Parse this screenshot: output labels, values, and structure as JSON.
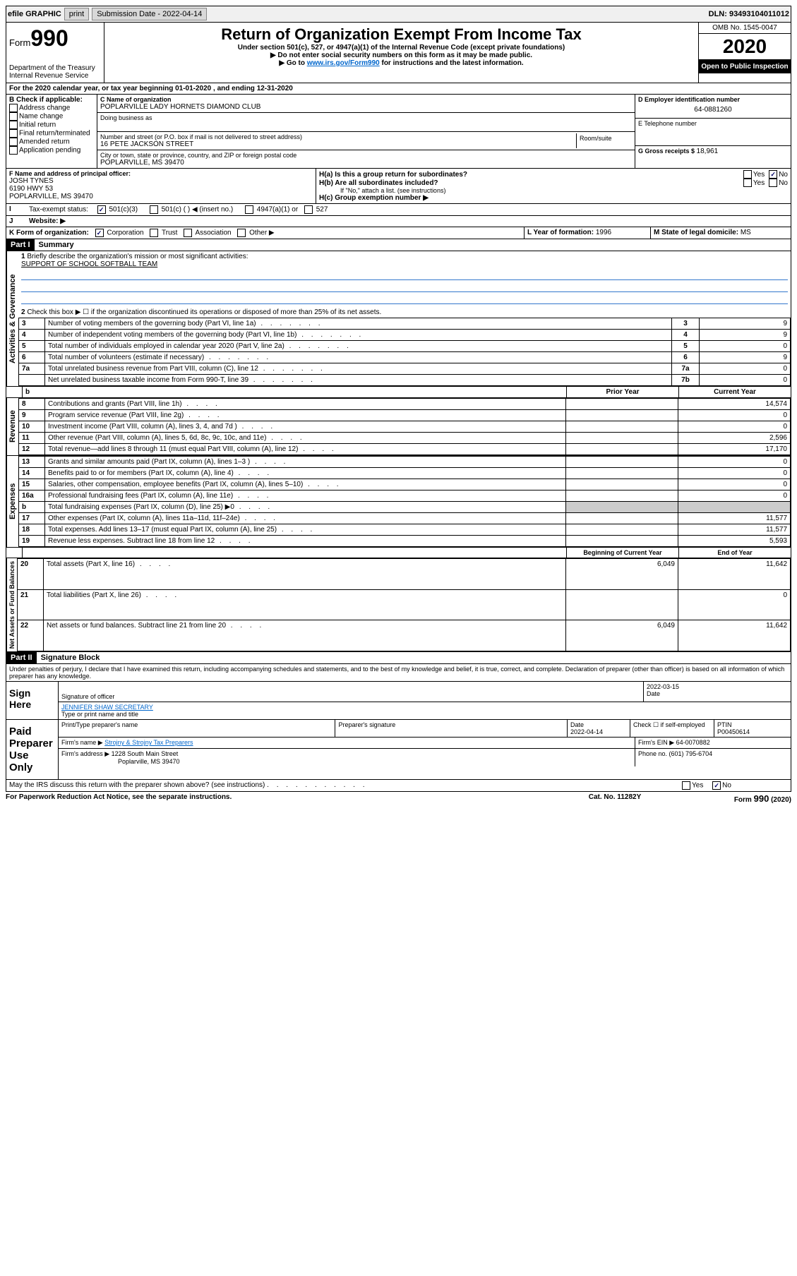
{
  "topbar": {
    "efile": "efile GRAPHIC",
    "print": "print",
    "sub_label": "Submission Date - 2022-04-14",
    "dln": "DLN: 93493104011012"
  },
  "header": {
    "form_label": "Form",
    "form_number": "990",
    "dept": "Department of the Treasury\nInternal Revenue Service",
    "title": "Return of Organization Exempt From Income Tax",
    "sub1": "Under section 501(c), 527, or 4947(a)(1) of the Internal Revenue Code (except private foundations)",
    "sub2": "▶ Do not enter social security numbers on this form as it may be made public.",
    "sub3_pre": "▶ Go to ",
    "sub3_link": "www.irs.gov/Form990",
    "sub3_post": " for instructions and the latest information.",
    "omb": "OMB No. 1545-0047",
    "year": "2020",
    "open": "Open to Public Inspection"
  },
  "sectionA": {
    "tax_year": "For the 2020 calendar year, or tax year beginning 01-01-2020    , and ending 12-31-2020",
    "b_label": "B Check if applicable:",
    "b_opts": [
      "Address change",
      "Name change",
      "Initial return",
      "Final return/terminated",
      "Amended return",
      "Application pending"
    ],
    "c_name_label": "C Name of organization",
    "c_name": "POPLARVILLE LADY HORNETS DIAMOND CLUB",
    "dba_label": "Doing business as",
    "addr_label": "Number and street (or P.O. box if mail is not delivered to street address)",
    "room_label": "Room/suite",
    "addr": "16 PETE JACKSON STREET",
    "city_label": "City or town, state or province, country, and ZIP or foreign postal code",
    "city": "POPLARVILLE, MS  39470",
    "d_label": "D Employer identification number",
    "d_ein": "64-0881260",
    "e_label": "E Telephone number",
    "g_label": "G Gross receipts $ ",
    "g_val": "18,961",
    "f_label": "F  Name and address of principal officer:",
    "f_name": "JOSH TYNES",
    "f_addr1": "6190 HWY 53",
    "f_addr2": "POPLARVILLE, MS  39470",
    "ha_label": "H(a)  Is this a group return for subordinates?",
    "hb_label": "H(b)  Are all subordinates included?",
    "h_note": "If \"No,\" attach a list. (see instructions)",
    "hc_label": "H(c)  Group exemption number ▶",
    "i_label": "Tax-exempt status:",
    "i_501c3": "501(c)(3)",
    "i_501c": "501(c) (  ) ◀ (insert no.)",
    "i_4947": "4947(a)(1) or",
    "i_527": "527",
    "j_label": "Website: ▶",
    "k_label": "K Form of organization:",
    "k_opts": [
      "Corporation",
      "Trust",
      "Association",
      "Other ▶"
    ],
    "l_label": "L Year of formation: ",
    "l_val": "1996",
    "m_label": "M State of legal domicile: ",
    "m_val": "MS",
    "yes": "Yes",
    "no": "No"
  },
  "partI": {
    "header": "Part I",
    "title": "Summary",
    "q1_label": "Briefly describe the organization's mission or most significant activities:",
    "q1_val": "SUPPORT OF SCHOOL SOFTBALL TEAM",
    "q2": "Check this box ▶ ☐  if the organization discontinued its operations or disposed of more than 25% of its net assets.",
    "rows_gov": [
      {
        "n": "3",
        "t": "Number of voting members of the governing body (Part VI, line 1a)",
        "box": "3",
        "v": "9"
      },
      {
        "n": "4",
        "t": "Number of independent voting members of the governing body (Part VI, line 1b)",
        "box": "4",
        "v": "9"
      },
      {
        "n": "5",
        "t": "Total number of individuals employed in calendar year 2020 (Part V, line 2a)",
        "box": "5",
        "v": "0"
      },
      {
        "n": "6",
        "t": "Total number of volunteers (estimate if necessary)",
        "box": "6",
        "v": "9"
      },
      {
        "n": "7a",
        "t": "Total unrelated business revenue from Part VIII, column (C), line 12",
        "box": "7a",
        "v": "0"
      },
      {
        "n": "",
        "t": "Net unrelated business taxable income from Form 990-T, line 39",
        "box": "7b",
        "v": "0"
      }
    ],
    "col_prior": "Prior Year",
    "col_current": "Current Year",
    "rows_rev": [
      {
        "n": "8",
        "t": "Contributions and grants (Part VIII, line 1h)",
        "p": "",
        "c": "14,574"
      },
      {
        "n": "9",
        "t": "Program service revenue (Part VIII, line 2g)",
        "p": "",
        "c": "0"
      },
      {
        "n": "10",
        "t": "Investment income (Part VIII, column (A), lines 3, 4, and 7d )",
        "p": "",
        "c": "0"
      },
      {
        "n": "11",
        "t": "Other revenue (Part VIII, column (A), lines 5, 6d, 8c, 9c, 10c, and 11e)",
        "p": "",
        "c": "2,596"
      },
      {
        "n": "12",
        "t": "Total revenue—add lines 8 through 11 (must equal Part VIII, column (A), line 12)",
        "p": "",
        "c": "17,170"
      }
    ],
    "rows_exp": [
      {
        "n": "13",
        "t": "Grants and similar amounts paid (Part IX, column (A), lines 1–3 )",
        "p": "",
        "c": "0"
      },
      {
        "n": "14",
        "t": "Benefits paid to or for members (Part IX, column (A), line 4)",
        "p": "",
        "c": "0"
      },
      {
        "n": "15",
        "t": "Salaries, other compensation, employee benefits (Part IX, column (A), lines 5–10)",
        "p": "",
        "c": "0"
      },
      {
        "n": "16a",
        "t": "Professional fundraising fees (Part IX, column (A), line 11e)",
        "p": "",
        "c": "0"
      },
      {
        "n": "b",
        "t": "Total fundraising expenses (Part IX, column (D), line 25) ▶0",
        "p": "shade",
        "c": "shade"
      },
      {
        "n": "17",
        "t": "Other expenses (Part IX, column (A), lines 11a–11d, 11f–24e)",
        "p": "",
        "c": "11,577"
      },
      {
        "n": "18",
        "t": "Total expenses. Add lines 13–17 (must equal Part IX, column (A), line 25)",
        "p": "",
        "c": "11,577"
      },
      {
        "n": "19",
        "t": "Revenue less expenses. Subtract line 18 from line 12",
        "p": "",
        "c": "5,593"
      }
    ],
    "col_begin": "Beginning of Current Year",
    "col_end": "End of Year",
    "rows_net": [
      {
        "n": "20",
        "t": "Total assets (Part X, line 16)",
        "p": "6,049",
        "c": "11,642"
      },
      {
        "n": "21",
        "t": "Total liabilities (Part X, line 26)",
        "p": "",
        "c": "0"
      },
      {
        "n": "22",
        "t": "Net assets or fund balances. Subtract line 21 from line 20",
        "p": "6,049",
        "c": "11,642"
      }
    ],
    "tab_gov": "Activities & Governance",
    "tab_rev": "Revenue",
    "tab_exp": "Expenses",
    "tab_net": "Net Assets or Fund Balances"
  },
  "partII": {
    "header": "Part II",
    "title": "Signature Block",
    "perjury": "Under penalties of perjury, I declare that I have examined this return, including accompanying schedules and statements, and to the best of my knowledge and belief, it is true, correct, and complete. Declaration of preparer (other than officer) is based on all information of which preparer has any knowledge.",
    "sign_here": "Sign Here",
    "sig_officer": "Signature of officer",
    "sig_date_label": "Date",
    "sig_date": "2022-03-15",
    "officer_name": "JENNIFER SHAW SECRETARY",
    "type_name": "Type or print name and title",
    "paid": "Paid Preparer Use Only",
    "prep_name_label": "Print/Type preparer's name",
    "prep_sig_label": "Preparer's signature",
    "prep_date_label": "Date",
    "prep_date": "2022-04-14",
    "check_self": "Check ☐ if self-employed",
    "ptin_label": "PTIN",
    "ptin": "P00450614",
    "firm_name_label": "Firm's name    ▶",
    "firm_name": "Strojny & Strojny Tax Preparers",
    "firm_ein_label": "Firm's EIN ▶",
    "firm_ein": "64-0070882",
    "firm_addr_label": "Firm's address ▶",
    "firm_addr": "1228 South Main Street",
    "firm_city": "Poplarville, MS  39470",
    "phone_label": "Phone no. ",
    "phone": "(601) 795-6704",
    "discuss": "May the IRS discuss this return with the preparer shown above? (see instructions)",
    "yes": "Yes",
    "no": "No"
  },
  "footer": {
    "pra": "For Paperwork Reduction Act Notice, see the separate instructions.",
    "cat": "Cat. No. 11282Y",
    "form": "Form 990 (2020)"
  }
}
